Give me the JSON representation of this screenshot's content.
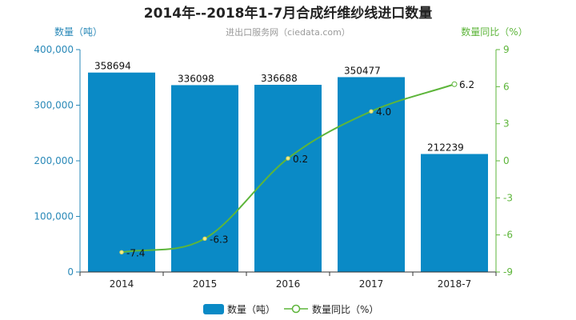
{
  "chart_data": {
    "type": "bar",
    "title": "2014年--2018年1-7月合成纤维纱线进口数量",
    "subtitle": "进出口服务网（ciedata.com）",
    "categories": [
      "2014",
      "2015",
      "2016",
      "2017",
      "2018-7"
    ],
    "series": [
      {
        "name": "数量（吨）",
        "type": "bar",
        "axis": "left",
        "values": [
          358694,
          336098,
          336688,
          350477,
          212239
        ]
      },
      {
        "name": "数量同比（%）",
        "type": "line",
        "axis": "right",
        "values": [
          -7.4,
          -6.3,
          0.2,
          4.0,
          6.2
        ]
      }
    ],
    "y_left": {
      "label": "数量（吨）",
      "ylim": [
        0,
        400000
      ],
      "ticks": [
        "0",
        "100,000",
        "200,000",
        "300,000",
        "400,000"
      ]
    },
    "y_right": {
      "label": "数量同比（%）",
      "ylim": [
        -9,
        9
      ],
      "ticks": [
        "-9",
        "-6",
        "-3",
        "0",
        "3",
        "6",
        "9"
      ]
    },
    "bar_labels": [
      "358694",
      "336098",
      "336688",
      "350477",
      "212239"
    ],
    "line_labels": [
      "-7.4",
      "-6.3",
      "0.2",
      "4.0",
      "6.2"
    ],
    "legend_position": "bottom",
    "grid": false
  },
  "colors": {
    "bar": "#0a8ac6",
    "line": "#5db53a",
    "left_axis": "#2a89b8",
    "right_axis": "#5db53a"
  }
}
